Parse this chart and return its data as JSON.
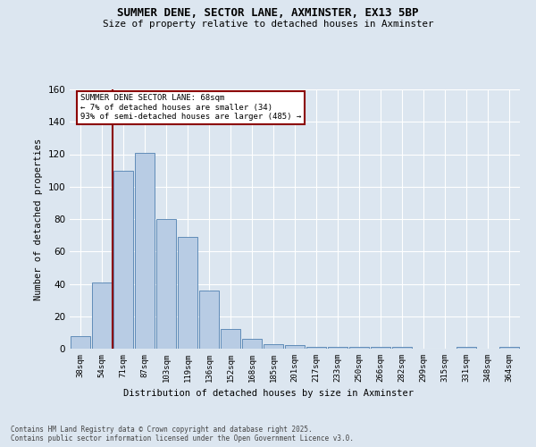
{
  "title_line1": "SUMMER DENE, SECTOR LANE, AXMINSTER, EX13 5BP",
  "title_line2": "Size of property relative to detached houses in Axminster",
  "xlabel": "Distribution of detached houses by size in Axminster",
  "ylabel": "Number of detached properties",
  "categories": [
    "38sqm",
    "54sqm",
    "71sqm",
    "87sqm",
    "103sqm",
    "119sqm",
    "136sqm",
    "152sqm",
    "168sqm",
    "185sqm",
    "201sqm",
    "217sqm",
    "233sqm",
    "250sqm",
    "266sqm",
    "282sqm",
    "299sqm",
    "315sqm",
    "331sqm",
    "348sqm",
    "364sqm"
  ],
  "values": [
    8,
    41,
    110,
    121,
    80,
    69,
    36,
    12,
    6,
    3,
    2,
    1,
    1,
    1,
    1,
    1,
    0,
    0,
    1,
    0,
    1
  ],
  "bar_color": "#b8cce4",
  "bar_edge_color": "#5080b0",
  "vline_bin_index": 1,
  "annotation_text": "SUMMER DENE SECTOR LANE: 68sqm\n← 7% of detached houses are smaller (34)\n93% of semi-detached houses are larger (485) →",
  "vline_color": "#8b0000",
  "annotation_box_edge_color": "#8b0000",
  "ylim": [
    0,
    160
  ],
  "yticks": [
    0,
    20,
    40,
    60,
    80,
    100,
    120,
    140,
    160
  ],
  "footer_line1": "Contains HM Land Registry data © Crown copyright and database right 2025.",
  "footer_line2": "Contains public sector information licensed under the Open Government Licence v3.0.",
  "background_color": "#dce6f0"
}
